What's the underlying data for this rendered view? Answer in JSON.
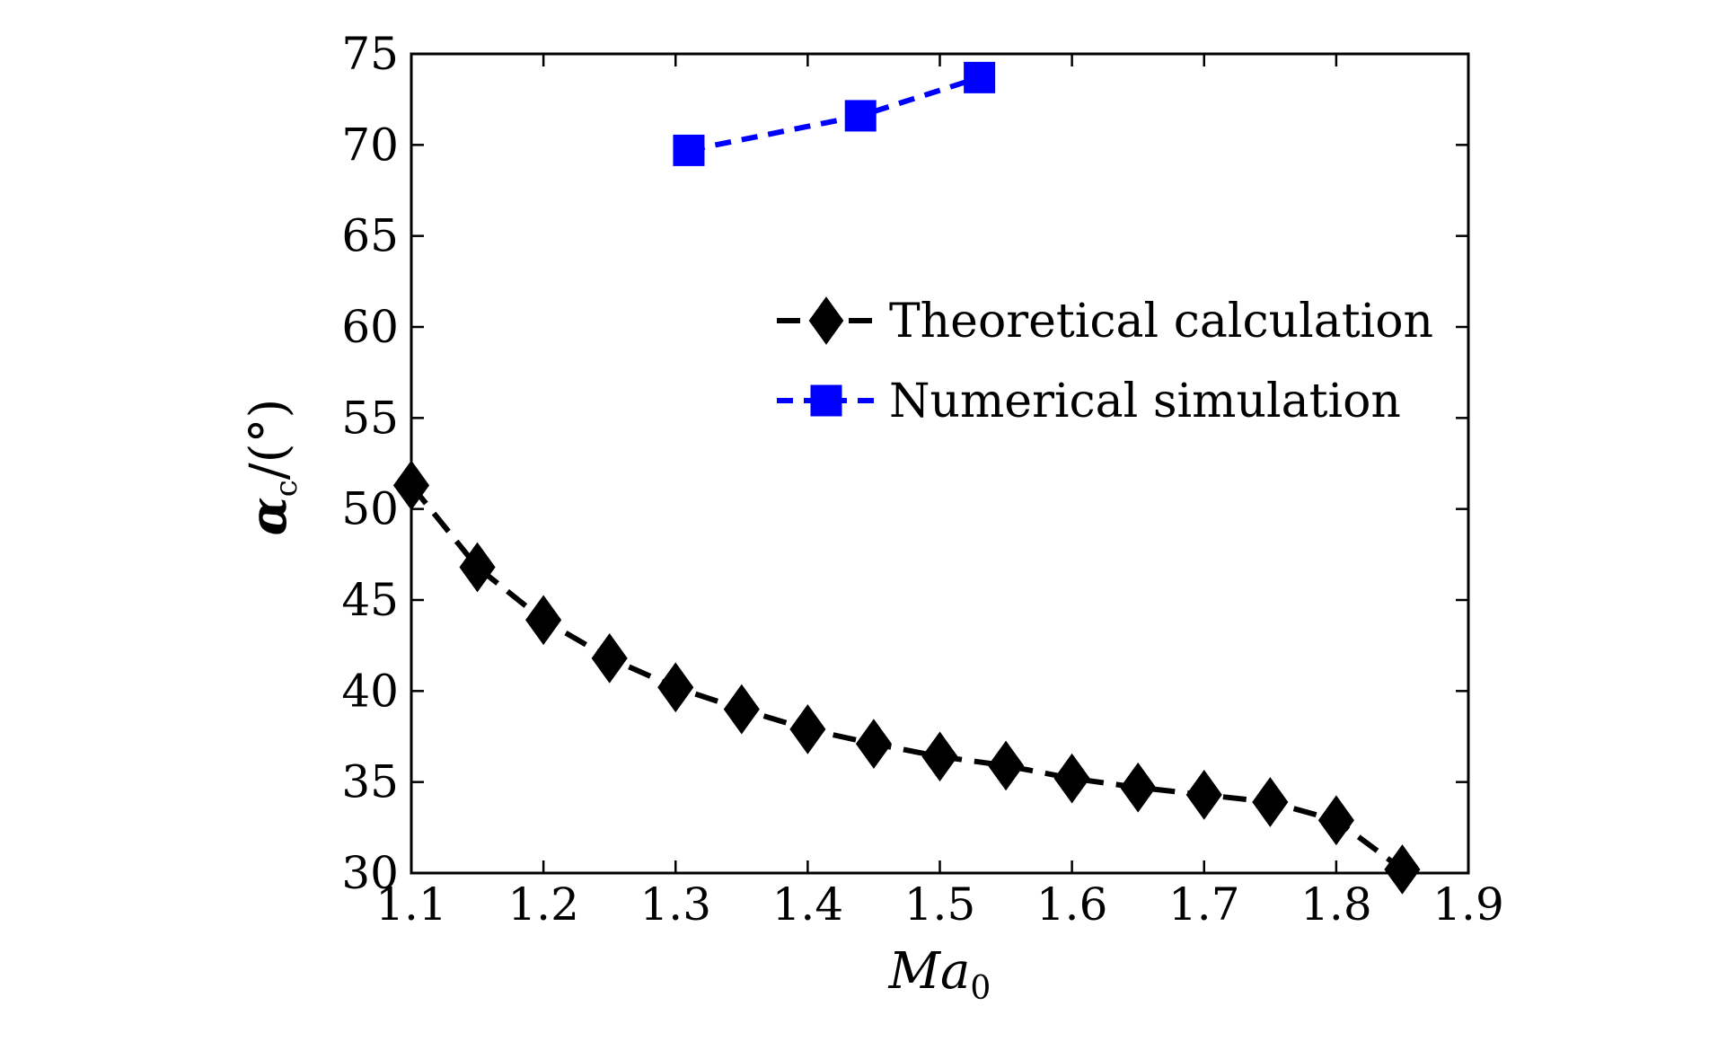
{
  "chart_data": {
    "type": "line",
    "xlabel": "Ma0",
    "xlabel_main": "Ma",
    "xlabel_sub": "0",
    "ylabel": "αc/(°)",
    "ylabel_symbol": "α",
    "ylabel_sub": "c",
    "ylabel_unit": "/(°)",
    "xlim": [
      1.1,
      1.9
    ],
    "ylim": [
      30,
      75
    ],
    "xticks": [
      1.1,
      1.2,
      1.3,
      1.4,
      1.5,
      1.6,
      1.7,
      1.8,
      1.9
    ],
    "xtick_labels": [
      "1.1",
      "1.2",
      "1.3",
      "1.4",
      "1.5",
      "1.6",
      "1.7",
      "1.8",
      "1.9"
    ],
    "yticks": [
      30,
      35,
      40,
      45,
      50,
      55,
      60,
      65,
      70,
      75
    ],
    "ytick_labels": [
      "30",
      "35",
      "40",
      "45",
      "50",
      "55",
      "60",
      "65",
      "70",
      "75"
    ],
    "grid": false,
    "legend_position": "right",
    "series": [
      {
        "name": "Theoretical calculation",
        "color": "#000000",
        "marker": "diamond",
        "line": "dashed",
        "x": [
          1.1,
          1.15,
          1.2,
          1.25,
          1.3,
          1.35,
          1.4,
          1.45,
          1.5,
          1.55,
          1.6,
          1.65,
          1.7,
          1.75,
          1.8,
          1.85
        ],
        "y": [
          51.3,
          46.8,
          43.9,
          41.8,
          40.2,
          39.0,
          37.9,
          37.1,
          36.4,
          35.9,
          35.2,
          34.7,
          34.3,
          33.9,
          32.9,
          30.2
        ]
      },
      {
        "name": "Numerical simulation",
        "color": "#0000ff",
        "marker": "square",
        "line": "dashed",
        "x": [
          1.31,
          1.44,
          1.53
        ],
        "y": [
          69.7,
          71.6,
          73.7
        ]
      }
    ]
  }
}
